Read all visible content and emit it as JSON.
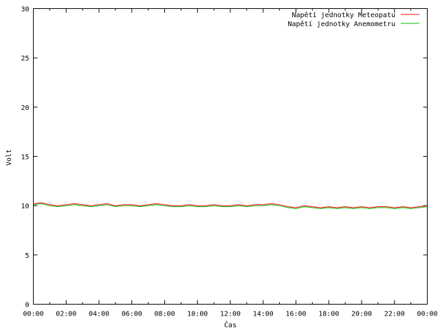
{
  "chart_data": {
    "type": "line",
    "title": "",
    "xlabel": "Čas",
    "ylabel": "Volt",
    "ylim": [
      0,
      30
    ],
    "yticks": [
      0,
      5,
      10,
      15,
      20,
      25,
      30
    ],
    "xlim_hours": [
      0,
      24
    ],
    "xtick_labels": [
      "00:00",
      "02:00",
      "04:00",
      "06:00",
      "08:00",
      "10:00",
      "12:00",
      "14:00",
      "16:00",
      "18:00",
      "20:00",
      "22:00",
      "00:00"
    ],
    "grid": false,
    "legend_position": "top-right",
    "x": [
      0,
      0.5,
      1,
      1.5,
      2,
      2.5,
      3,
      3.5,
      4,
      4.5,
      5,
      5.5,
      6,
      6.5,
      7,
      7.5,
      8,
      8.5,
      9,
      9.5,
      10,
      10.5,
      11,
      11.5,
      12,
      12.5,
      13,
      13.5,
      14,
      14.5,
      15,
      15.5,
      16,
      16.5,
      17,
      17.5,
      18,
      18.5,
      19,
      19.5,
      20,
      20.5,
      21,
      21.5,
      22,
      22.5,
      23,
      23.5,
      24
    ],
    "series": [
      {
        "name": "Napětí jednotky Meteopatu",
        "color": "#ff0000",
        "values": [
          10.2,
          10.3,
          10.1,
          10.0,
          10.1,
          10.2,
          10.1,
          10.0,
          10.1,
          10.2,
          10.0,
          10.1,
          10.1,
          10.0,
          10.1,
          10.2,
          10.1,
          10.0,
          10.0,
          10.1,
          10.0,
          10.0,
          10.1,
          10.0,
          10.0,
          10.1,
          10.0,
          10.1,
          10.1,
          10.2,
          10.1,
          9.9,
          9.8,
          10.0,
          9.9,
          9.8,
          9.9,
          9.8,
          9.9,
          9.8,
          9.9,
          9.8,
          9.9,
          9.9,
          9.8,
          9.9,
          9.8,
          9.9,
          10.0
        ]
      },
      {
        "name": "Napětí jednotky Anemometru",
        "color": "#00c000",
        "values": [
          10.1,
          10.2,
          10.0,
          9.9,
          10.0,
          10.1,
          10.0,
          9.9,
          10.0,
          10.1,
          9.9,
          10.0,
          10.0,
          9.9,
          10.0,
          10.1,
          10.0,
          9.9,
          9.9,
          10.0,
          9.9,
          9.9,
          10.0,
          9.9,
          9.9,
          10.0,
          9.9,
          10.0,
          10.0,
          10.1,
          10.0,
          9.8,
          9.7,
          9.9,
          9.8,
          9.7,
          9.8,
          9.7,
          9.8,
          9.7,
          9.8,
          9.7,
          9.8,
          9.8,
          9.7,
          9.8,
          9.7,
          9.8,
          9.9
        ]
      }
    ]
  }
}
